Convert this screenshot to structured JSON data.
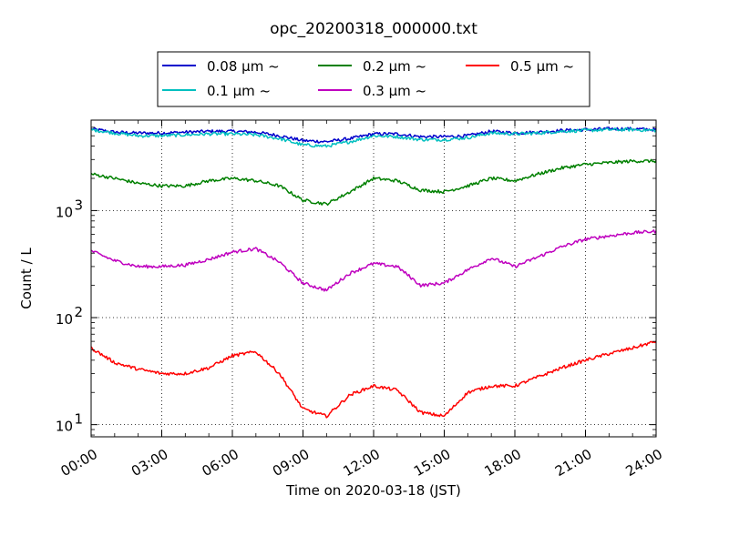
{
  "chart_data": {
    "type": "line",
    "title": "opc_20200318_000000.txt",
    "xlabel": "Time on 2020-03-18 (JST)",
    "ylabel": "Count / L",
    "y_scale": "log",
    "xlim": [
      "00:00",
      "24:00"
    ],
    "ylim": [
      7.7,
      7000
    ],
    "grid": true,
    "legend_position": "top",
    "x_tick_labels": [
      "00:00",
      "03:00",
      "06:00",
      "09:00",
      "12:00",
      "15:00",
      "18:00",
      "21:00",
      "24:00"
    ],
    "y_tick_labels": [
      {
        "base": "10",
        "exp": "1"
      },
      {
        "base": "10",
        "exp": "2"
      },
      {
        "base": "10",
        "exp": "3"
      }
    ],
    "x": [
      "00:00",
      "01:00",
      "02:00",
      "03:00",
      "04:00",
      "05:00",
      "06:00",
      "07:00",
      "08:00",
      "09:00",
      "10:00",
      "11:00",
      "12:00",
      "13:00",
      "14:00",
      "15:00",
      "16:00",
      "17:00",
      "18:00",
      "19:00",
      "20:00",
      "21:00",
      "22:00",
      "23:00",
      "24:00"
    ],
    "series": [
      {
        "name": "0.08 μm ~",
        "color": "#0000cc",
        "values": [
          5800,
          5400,
          5300,
          5300,
          5400,
          5500,
          5500,
          5400,
          5000,
          4500,
          4400,
          4700,
          5200,
          5200,
          4900,
          4900,
          5000,
          5500,
          5300,
          5400,
          5600,
          5700,
          5800,
          5800,
          5700
        ]
      },
      {
        "name": "0.1 μm ~",
        "color": "#00bfbf",
        "values": [
          5700,
          5300,
          5000,
          5000,
          5100,
          5200,
          5200,
          5100,
          4700,
          4100,
          4000,
          4400,
          5000,
          4900,
          4600,
          4600,
          4800,
          5300,
          5200,
          5300,
          5500,
          5600,
          5700,
          5700,
          5600
        ]
      },
      {
        "name": "0.2 μm ~",
        "color": "#008000",
        "values": [
          2200,
          2000,
          1800,
          1700,
          1700,
          1900,
          2000,
          1900,
          1700,
          1250,
          1150,
          1500,
          2000,
          1900,
          1550,
          1500,
          1700,
          2000,
          1900,
          2200,
          2500,
          2700,
          2800,
          2900,
          2900
        ]
      },
      {
        "name": "0.3 μm ~",
        "color": "#bf00bf",
        "values": [
          420,
          340,
          300,
          300,
          310,
          350,
          410,
          440,
          330,
          210,
          180,
          260,
          320,
          300,
          200,
          210,
          280,
          360,
          300,
          370,
          460,
          540,
          580,
          620,
          640
        ]
      },
      {
        "name": "0.5 μm ~",
        "color": "#ff0000",
        "values": [
          52,
          38,
          33,
          30,
          30,
          34,
          44,
          48,
          30,
          14,
          12,
          19,
          23,
          21,
          13,
          12,
          20,
          23,
          23,
          28,
          34,
          40,
          46,
          52,
          60
        ]
      }
    ]
  }
}
